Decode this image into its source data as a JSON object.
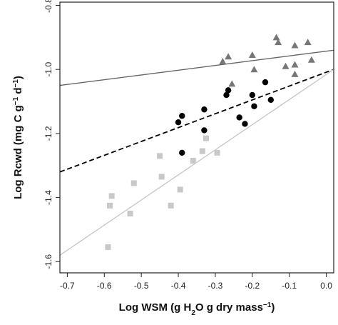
{
  "chart_data": {
    "type": "scatter",
    "title": "",
    "xlabel": {
      "parts": [
        {
          "text": "Log WSM (g H",
          "sub": false,
          "sup": false
        },
        {
          "text": "2",
          "sub": true,
          "sup": false
        },
        {
          "text": "O g dry mass",
          "sub": false,
          "sup": false
        },
        {
          "text": "−1",
          "sub": false,
          "sup": true
        },
        {
          "text": ")",
          "sub": false,
          "sup": false
        }
      ]
    },
    "ylabel": {
      "parts": [
        {
          "text": "Log Rcwd (mg C g",
          "sup": false
        },
        {
          "text": "−1",
          "sup": true
        },
        {
          "text": " d",
          "sup": false
        },
        {
          "text": "−1",
          "sup": true
        },
        {
          "text": ")",
          "sup": false
        }
      ]
    },
    "xlim": [
      -0.72,
      0.02
    ],
    "ylim": [
      -1.635,
      -0.79
    ],
    "xticks": [
      -0.7,
      -0.6,
      -0.5,
      -0.4,
      -0.3,
      -0.2,
      -0.1,
      0.0
    ],
    "xtick_labels": [
      "-0.7",
      "-0.6",
      "-0.5",
      "-0.4",
      "-0.3",
      "-0.2",
      "-0.1",
      "0.0"
    ],
    "yticks": [
      -0.8,
      -1.0,
      -1.2,
      -1.4,
      -1.6
    ],
    "ytick_labels": [
      "-0.8",
      "-1.0",
      "-1.2",
      "-1.4",
      "-1.6"
    ],
    "grid": false,
    "series": [
      {
        "marker": "triangle",
        "color": "#777777",
        "points": [
          {
            "x": -0.28,
            "y": -0.975
          },
          {
            "x": -0.265,
            "y": -0.96
          },
          {
            "x": -0.255,
            "y": -1.045
          },
          {
            "x": -0.2,
            "y": -0.955
          },
          {
            "x": -0.195,
            "y": -1.0
          },
          {
            "x": -0.135,
            "y": -0.9
          },
          {
            "x": -0.13,
            "y": -0.915
          },
          {
            "x": -0.085,
            "y": -0.925
          },
          {
            "x": -0.11,
            "y": -0.99
          },
          {
            "x": -0.085,
            "y": -1.015
          },
          {
            "x": -0.085,
            "y": -0.985
          },
          {
            "x": -0.05,
            "y": -0.915
          },
          {
            "x": -0.04,
            "y": -0.97
          }
        ],
        "fit": {
          "x": [
            -0.72,
            0.02
          ],
          "y": [
            -1.05,
            -0.94
          ],
          "style": "solid",
          "color": "#666666"
        }
      },
      {
        "marker": "circle",
        "color": "#000000",
        "points": [
          {
            "x": -0.4,
            "y": -1.165
          },
          {
            "x": -0.39,
            "y": -1.145
          },
          {
            "x": -0.39,
            "y": -1.26
          },
          {
            "x": -0.33,
            "y": -1.125
          },
          {
            "x": -0.33,
            "y": -1.19
          },
          {
            "x": -0.27,
            "y": -1.08
          },
          {
            "x": -0.265,
            "y": -1.065
          },
          {
            "x": -0.235,
            "y": -1.15
          },
          {
            "x": -0.22,
            "y": -1.17
          },
          {
            "x": -0.2,
            "y": -1.08
          },
          {
            "x": -0.195,
            "y": -1.115
          },
          {
            "x": -0.165,
            "y": -1.04
          },
          {
            "x": -0.15,
            "y": -1.095
          }
        ],
        "fit": {
          "x": [
            -0.72,
            0.02
          ],
          "y": [
            -1.32,
            -1.0
          ],
          "style": "dashed",
          "color": "#000000"
        }
      },
      {
        "marker": "square",
        "color": "#c8c8c8",
        "points": [
          {
            "x": -0.59,
            "y": -1.555
          },
          {
            "x": -0.585,
            "y": -1.425
          },
          {
            "x": -0.58,
            "y": -1.395
          },
          {
            "x": -0.53,
            "y": -1.45
          },
          {
            "x": -0.52,
            "y": -1.355
          },
          {
            "x": -0.45,
            "y": -1.27
          },
          {
            "x": -0.445,
            "y": -1.335
          },
          {
            "x": -0.42,
            "y": -1.425
          },
          {
            "x": -0.395,
            "y": -1.375
          },
          {
            "x": -0.36,
            "y": -1.285
          },
          {
            "x": -0.335,
            "y": -1.255
          },
          {
            "x": -0.325,
            "y": -1.215
          },
          {
            "x": -0.295,
            "y": -1.26
          }
        ],
        "fit": {
          "x": [
            -0.72,
            0.02
          ],
          "y": [
            -1.58,
            -1.0
          ],
          "style": "solid",
          "color": "#c8c8c8"
        }
      }
    ]
  }
}
